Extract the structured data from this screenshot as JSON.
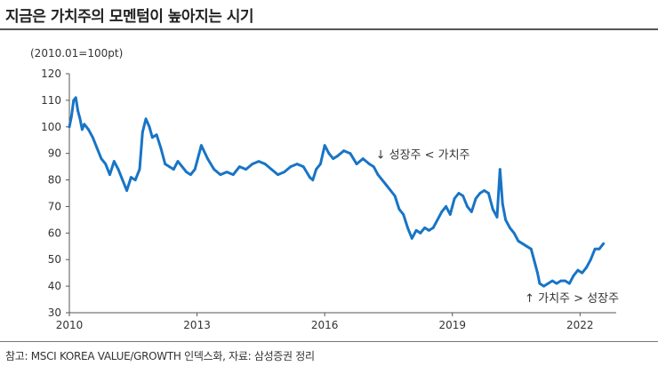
{
  "header": {
    "title": "지금은 가치주의 모멘텀이 높아지는 시기"
  },
  "footer": {
    "source": "참고: MSCI KOREA VALUE/GROWTH 인덱스화, 자료: 삼성증권 정리"
  },
  "colors": {
    "line": "#1874C6",
    "axis": "#555555",
    "text": "#333333"
  },
  "chart_data": {
    "type": "line",
    "title": "지금은 가치주의 모멘텀이 높아지는 시기",
    "ylabel": "(2010.01=100pt)",
    "xlabel": "",
    "ylim": [
      30,
      120
    ],
    "xlim": [
      2010.0,
      2022.85
    ],
    "yticks": [
      30,
      40,
      50,
      60,
      70,
      80,
      90,
      100,
      110,
      120
    ],
    "ytick_labels": [
      "30",
      "40",
      "50",
      "60",
      "70",
      "80",
      "90",
      "100",
      "110",
      "120"
    ],
    "xticks": [
      2010,
      2013,
      2016,
      2019,
      2022
    ],
    "xtick_labels": [
      "2010",
      "2013",
      "2016",
      "2019",
      "2022"
    ],
    "grid": false,
    "series": [
      {
        "name": "MSCI KOREA VALUE/GROWTH",
        "x": [
          2010.0,
          2010.05,
          2010.1,
          2010.15,
          2010.2,
          2010.25,
          2010.3,
          2010.35,
          2010.45,
          2010.55,
          2010.65,
          2010.75,
          2010.85,
          2010.95,
          2011.05,
          2011.15,
          2011.25,
          2011.35,
          2011.45,
          2011.55,
          2011.65,
          2011.72,
          2011.8,
          2011.88,
          2011.95,
          2012.05,
          2012.15,
          2012.25,
          2012.35,
          2012.45,
          2012.55,
          2012.65,
          2012.75,
          2012.85,
          2012.95,
          2013.1,
          2013.25,
          2013.4,
          2013.55,
          2013.7,
          2013.85,
          2014.0,
          2014.15,
          2014.3,
          2014.45,
          2014.6,
          2014.75,
          2014.9,
          2015.05,
          2015.2,
          2015.35,
          2015.5,
          2015.65,
          2015.72,
          2015.8,
          2015.9,
          2016.0,
          2016.1,
          2016.2,
          2016.3,
          2016.45,
          2016.6,
          2016.75,
          2016.9,
          2017.05,
          2017.15,
          2017.25,
          2017.35,
          2017.45,
          2017.55,
          2017.65,
          2017.75,
          2017.85,
          2017.95,
          2018.05,
          2018.15,
          2018.25,
          2018.35,
          2018.45,
          2018.55,
          2018.65,
          2018.75,
          2018.85,
          2018.95,
          2019.05,
          2019.15,
          2019.25,
          2019.35,
          2019.45,
          2019.55,
          2019.65,
          2019.75,
          2019.85,
          2019.95,
          2020.05,
          2020.12,
          2020.18,
          2020.25,
          2020.35,
          2020.45,
          2020.55,
          2020.65,
          2020.75,
          2020.85,
          2020.95,
          2021.0,
          2021.05,
          2021.15,
          2021.25,
          2021.35,
          2021.45,
          2021.55,
          2021.65,
          2021.75,
          2021.85,
          2021.95,
          2022.05,
          2022.15,
          2022.25,
          2022.35,
          2022.45,
          2022.55
        ],
        "values": [
          100,
          104,
          110,
          111,
          106,
          103,
          99,
          101,
          99,
          96,
          92,
          88,
          86,
          82,
          87,
          84,
          80,
          76,
          81,
          80,
          84,
          98,
          103,
          100,
          96,
          97,
          92,
          86,
          85,
          84,
          87,
          85,
          83,
          82,
          84,
          93,
          88,
          84,
          82,
          83,
          82,
          85,
          84,
          86,
          87,
          86,
          84,
          82,
          83,
          85,
          86,
          85,
          81,
          80,
          84,
          86,
          93,
          90,
          88,
          89,
          91,
          90,
          86,
          88,
          86,
          85,
          82,
          80,
          78,
          76,
          74,
          69,
          67,
          62,
          58,
          61,
          60,
          62,
          61,
          62,
          65,
          68,
          70,
          67,
          73,
          75,
          74,
          70,
          68,
          73,
          75,
          76,
          75,
          69,
          66,
          84,
          71,
          65,
          62,
          60,
          57,
          56,
          55,
          54,
          48,
          45,
          41,
          40,
          41,
          42,
          41,
          42,
          42,
          41,
          44,
          46,
          45,
          47,
          50,
          54,
          54,
          56
        ]
      }
    ],
    "annotations": [
      {
        "text": "↓ 성장주 < 가치주",
        "x": 2017.2,
        "y": 88
      },
      {
        "text": "↑ 가치주 > 성장주",
        "x": 2020.7,
        "y": 34
      }
    ]
  }
}
